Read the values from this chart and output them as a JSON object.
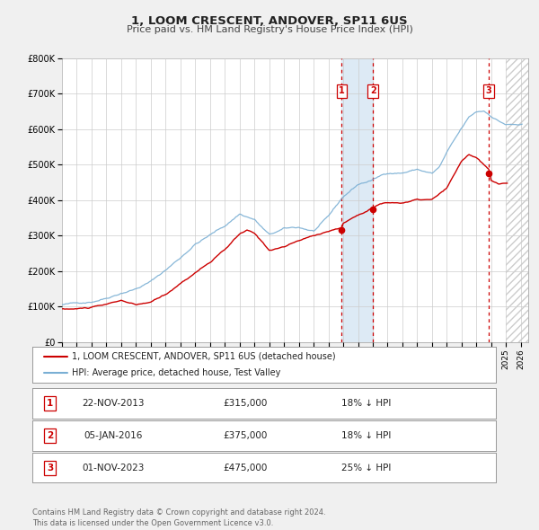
{
  "title": "1, LOOM CRESCENT, ANDOVER, SP11 6US",
  "subtitle": "Price paid vs. HM Land Registry's House Price Index (HPI)",
  "ylim": [
    0,
    800000
  ],
  "yticks": [
    0,
    100000,
    200000,
    300000,
    400000,
    500000,
    600000,
    700000,
    800000
  ],
  "ytick_labels": [
    "£0",
    "£100K",
    "£200K",
    "£300K",
    "£400K",
    "£500K",
    "£600K",
    "£700K",
    "£800K"
  ],
  "xlim_start": 1995.0,
  "xlim_end": 2026.5,
  "legend_line1": "1, LOOM CRESCENT, ANDOVER, SP11 6US (detached house)",
  "legend_line2": "HPI: Average price, detached house, Test Valley",
  "table_rows": [
    {
      "num": "1",
      "date": "22-NOV-2013",
      "price": "£315,000",
      "hpi": "18% ↓ HPI"
    },
    {
      "num": "2",
      "date": "05-JAN-2016",
      "price": "£375,000",
      "hpi": "18% ↓ HPI"
    },
    {
      "num": "3",
      "date": "01-NOV-2023",
      "price": "£475,000",
      "hpi": "25% ↓ HPI"
    }
  ],
  "footer": "Contains HM Land Registry data © Crown copyright and database right 2024.\nThis data is licensed under the Open Government Licence v3.0.",
  "sale_color": "#cc0000",
  "hpi_color": "#7aafd4",
  "dot_color": "#cc0000",
  "vline_color": "#cc0000",
  "shade_color": "#ddeaf5",
  "bg_color": "#f0f0f0",
  "plot_bg": "#ffffff",
  "grid_color": "#cccccc",
  "sale_dates": [
    2013.896,
    2016.014,
    2023.836
  ],
  "sale_prices": [
    315000,
    375000,
    475000
  ],
  "sale_labels": [
    "1",
    "2",
    "3"
  ],
  "hatch_start": 2025.0
}
